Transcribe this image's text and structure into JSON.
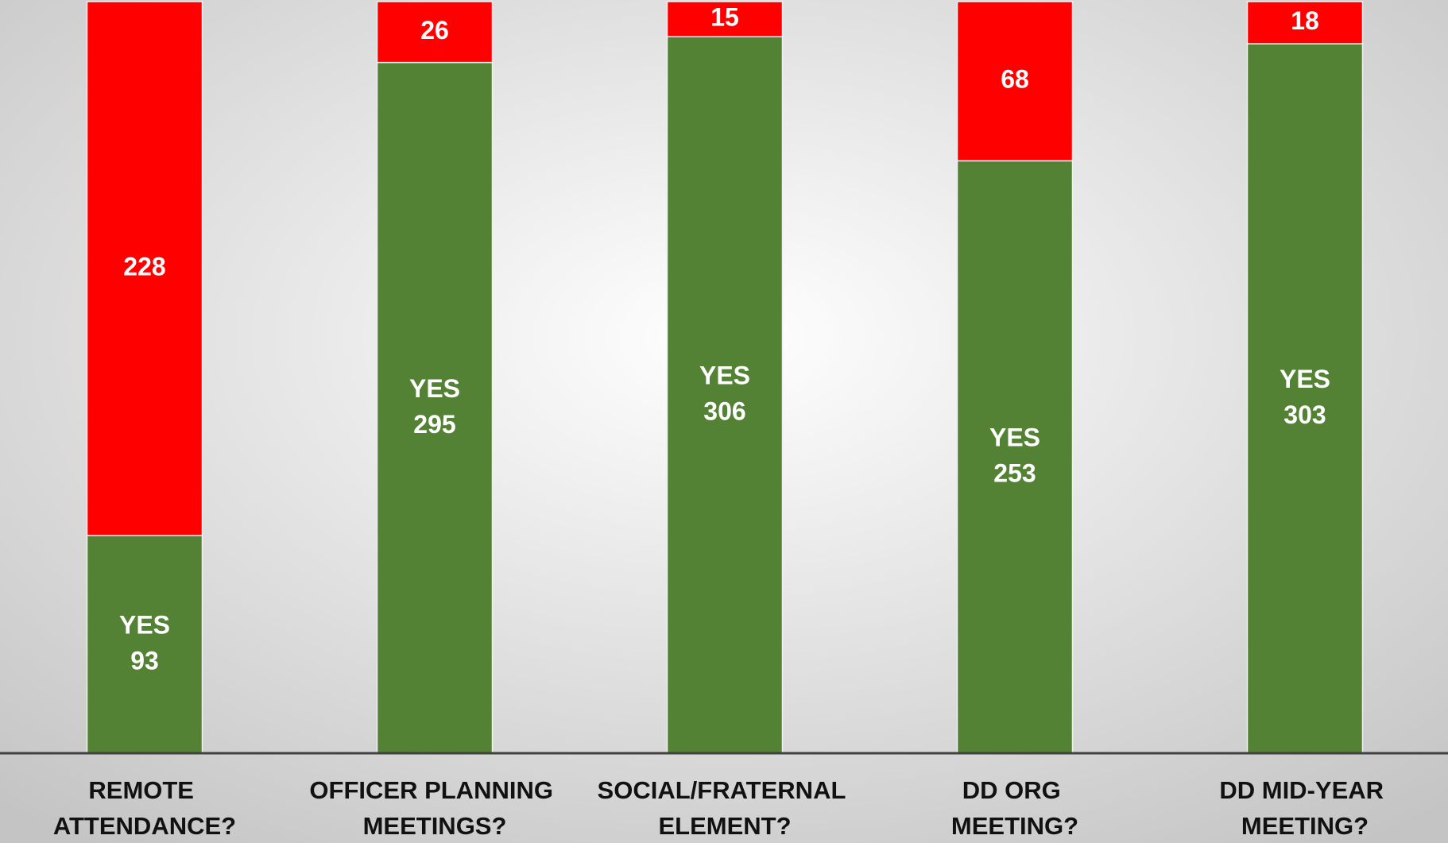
{
  "chart_data": {
    "type": "stacked_bar",
    "categories": [
      "REMOTE ATTENDANCE?",
      "OFFICER PLANNING MEETINGS?",
      "SOCIAL/FRATERNAL ELEMENT?",
      "DD ORG MEETING?",
      "DD MID-YEAR MEETING?"
    ],
    "series": [
      {
        "name": "YES",
        "color": "#548235",
        "values": [
          93,
          295,
          306,
          253,
          303
        ]
      },
      {
        "color": "#ff0000",
        "values": [
          228,
          26,
          15,
          68,
          18
        ]
      }
    ],
    "ylim": [
      0,
      321
    ]
  }
}
